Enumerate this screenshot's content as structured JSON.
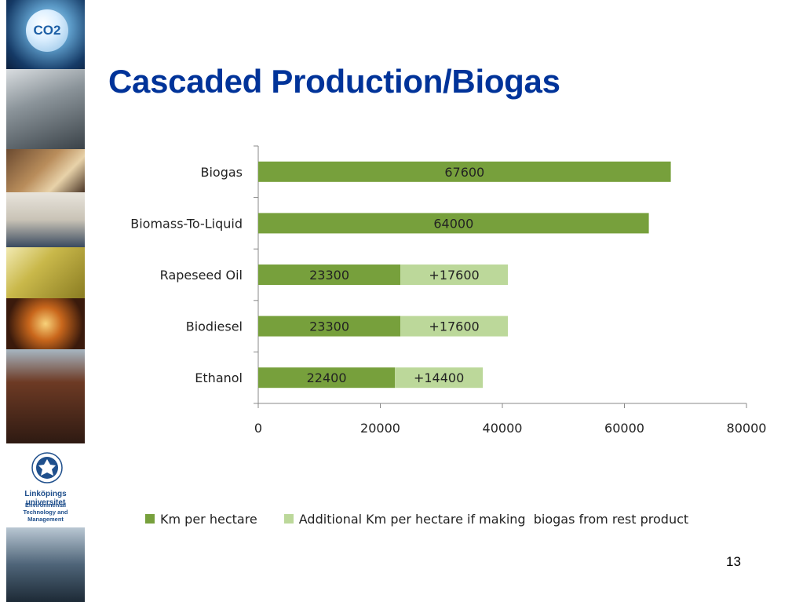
{
  "slide": {
    "title": "Cascaded Production/Biogas",
    "page_number": "13"
  },
  "sidebar": {
    "co2_label": "CO2",
    "university": "Linköpings universitet",
    "department": [
      "Environmental",
      "Technology and",
      "Management"
    ]
  },
  "colors": {
    "title": "#003399",
    "series_primary": "#77a03c",
    "series_additional": "#bcd89a"
  },
  "chart_data": {
    "type": "bar",
    "orientation": "horizontal",
    "stacked": true,
    "categories": [
      "Biogas",
      "Biomass-To-Liquid",
      "Rapeseed Oil",
      "Biodiesel",
      "Ethanol"
    ],
    "series": [
      {
        "name": "Km per hectare",
        "values": [
          67600,
          64000,
          23300,
          23300,
          22400
        ],
        "labels": [
          "67600",
          "64000",
          "23300",
          "23300",
          "22400"
        ]
      },
      {
        "name": "Additional Km per hectare if making  biogas from rest product",
        "values": [
          0,
          0,
          17600,
          17600,
          14400
        ],
        "labels": [
          "",
          "",
          "+17600",
          "+17600",
          "+14400"
        ]
      }
    ],
    "xlim": [
      0,
      80000
    ],
    "xticks": [
      "0",
      "20000",
      "40000",
      "60000",
      "80000"
    ],
    "grid": false,
    "legend_position": "bottom"
  }
}
